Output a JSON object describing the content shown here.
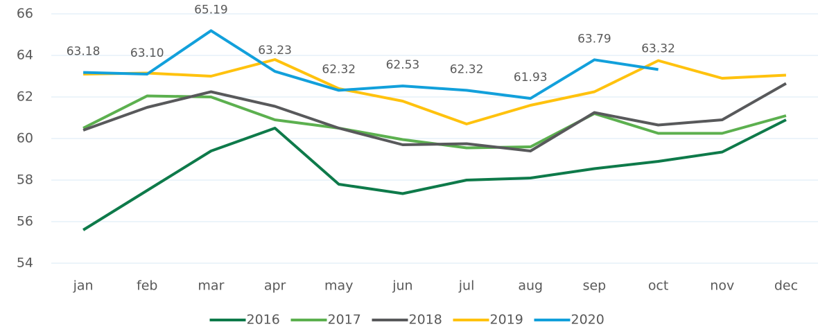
{
  "chart_data": {
    "type": "line",
    "categories": [
      "jan",
      "feb",
      "mar",
      "apr",
      "may",
      "jun",
      "jul",
      "aug",
      "sep",
      "oct",
      "nov",
      "dec"
    ],
    "ylim": [
      54,
      66
    ],
    "yticks": [
      54,
      56,
      58,
      60,
      62,
      64,
      66
    ],
    "grid": true,
    "legend": "bottom",
    "series": [
      {
        "name": "2016",
        "color": "#0e7a4a",
        "values": [
          55.6,
          57.5,
          59.4,
          60.5,
          57.8,
          57.35,
          58.0,
          58.1,
          58.55,
          58.9,
          59.35,
          60.9
        ]
      },
      {
        "name": "2017",
        "color": "#5cb04f",
        "values": [
          60.5,
          62.05,
          62.0,
          60.9,
          60.5,
          59.95,
          59.55,
          59.6,
          61.2,
          60.25,
          60.25,
          61.1
        ]
      },
      {
        "name": "2018",
        "color": "#58595b",
        "values": [
          60.4,
          61.5,
          62.25,
          61.55,
          60.5,
          59.7,
          59.75,
          59.4,
          61.25,
          60.65,
          60.9,
          62.65
        ]
      },
      {
        "name": "2019",
        "color": "#ffc20e",
        "values": [
          63.1,
          63.15,
          63.0,
          63.8,
          62.4,
          61.8,
          60.7,
          61.6,
          62.25,
          63.75,
          62.9,
          63.05
        ]
      },
      {
        "name": "2020",
        "color": "#12a0db",
        "values": [
          63.18,
          63.1,
          65.19,
          63.23,
          62.32,
          62.53,
          62.32,
          61.93,
          63.79,
          63.32,
          null,
          null
        ],
        "value_labels": [
          "63.18",
          "63.10",
          "65.19",
          "63.23",
          "62.32",
          "62.53",
          "62.32",
          "61.93",
          "63.79",
          "63.32",
          null,
          null
        ]
      }
    ]
  }
}
